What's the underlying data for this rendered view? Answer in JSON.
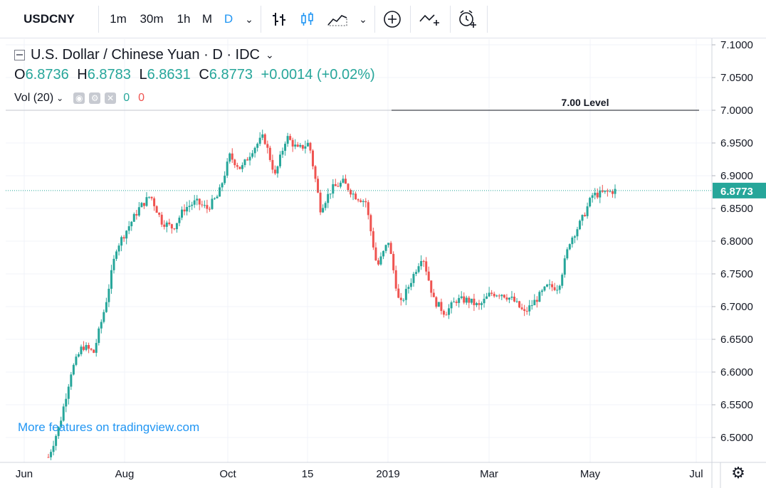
{
  "toolbar": {
    "symbol": "USDCNY",
    "intervals": [
      "1m",
      "30m",
      "1h",
      "M",
      "D"
    ],
    "active_interval": "D",
    "icons": [
      "chevron-down-icon",
      "bar-chart-icon",
      "candles-icon",
      "area-chart-icon",
      "chevron-down-icon",
      "add-indicator-icon",
      "compare-icon",
      "alert-icon"
    ]
  },
  "legend": {
    "title": "U.S. Dollar / Chinese Yuan · D · IDC",
    "o_label": "O",
    "o": "6.8736",
    "h_label": "H",
    "h": "6.8783",
    "l_label": "L",
    "l": "6.8631",
    "c_label": "C",
    "c": "6.8773",
    "change": "+0.0014 (+0.02%)",
    "vol_label": "Vol (20)",
    "vol_value_1": "0",
    "vol_value_2": "0"
  },
  "watermark": "More features on tradingview.com",
  "colors": {
    "up": "#26a69a",
    "down": "#ef5350",
    "accent": "#2196f3"
  },
  "chart_data": {
    "type": "candlestick",
    "series_name": "USDCNY",
    "ylim": [
      6.47,
      7.105
    ],
    "yticks": [
      "7.1000",
      "7.0500",
      "7.0000",
      "6.9500",
      "6.9000",
      "6.8500",
      "6.8000",
      "6.7500",
      "6.7000",
      "6.6500",
      "6.6000",
      "6.5500",
      "6.5000"
    ],
    "xticks": [
      "Jun",
      "Aug",
      "Oct",
      "15",
      "2019",
      "Mar",
      "May",
      "Jul"
    ],
    "last_price": "6.8773",
    "annotation": {
      "text": "7.00 Level",
      "value": 7.0
    },
    "close_path": [
      [
        0.0,
        6.47
      ],
      [
        0.02,
        6.52
      ],
      [
        0.04,
        6.6
      ],
      [
        0.06,
        6.64
      ],
      [
        0.08,
        6.63
      ],
      [
        0.1,
        6.7
      ],
      [
        0.12,
        6.79
      ],
      [
        0.14,
        6.82
      ],
      [
        0.16,
        6.85
      ],
      [
        0.18,
        6.87
      ],
      [
        0.2,
        6.83
      ],
      [
        0.22,
        6.82
      ],
      [
        0.24,
        6.85
      ],
      [
        0.26,
        6.86
      ],
      [
        0.28,
        6.85
      ],
      [
        0.3,
        6.87
      ],
      [
        0.32,
        6.93
      ],
      [
        0.34,
        6.91
      ],
      [
        0.36,
        6.94
      ],
      [
        0.38,
        6.96
      ],
      [
        0.4,
        6.9
      ],
      [
        0.42,
        6.96
      ],
      [
        0.44,
        6.94
      ],
      [
        0.46,
        6.95
      ],
      [
        0.48,
        6.85
      ],
      [
        0.5,
        6.88
      ],
      [
        0.52,
        6.89
      ],
      [
        0.54,
        6.87
      ],
      [
        0.56,
        6.86
      ],
      [
        0.58,
        6.76
      ],
      [
        0.6,
        6.8
      ],
      [
        0.62,
        6.7
      ],
      [
        0.64,
        6.74
      ],
      [
        0.66,
        6.78
      ],
      [
        0.68,
        6.71
      ],
      [
        0.7,
        6.69
      ],
      [
        0.72,
        6.71
      ],
      [
        0.74,
        6.71
      ],
      [
        0.76,
        6.7
      ],
      [
        0.78,
        6.72
      ],
      [
        0.8,
        6.72
      ],
      [
        0.82,
        6.71
      ],
      [
        0.84,
        6.69
      ],
      [
        0.86,
        6.71
      ],
      [
        0.88,
        6.73
      ],
      [
        0.9,
        6.73
      ],
      [
        0.92,
        6.8
      ],
      [
        0.94,
        6.83
      ],
      [
        0.96,
        6.87
      ],
      [
        1.0,
        6.8773
      ]
    ]
  }
}
